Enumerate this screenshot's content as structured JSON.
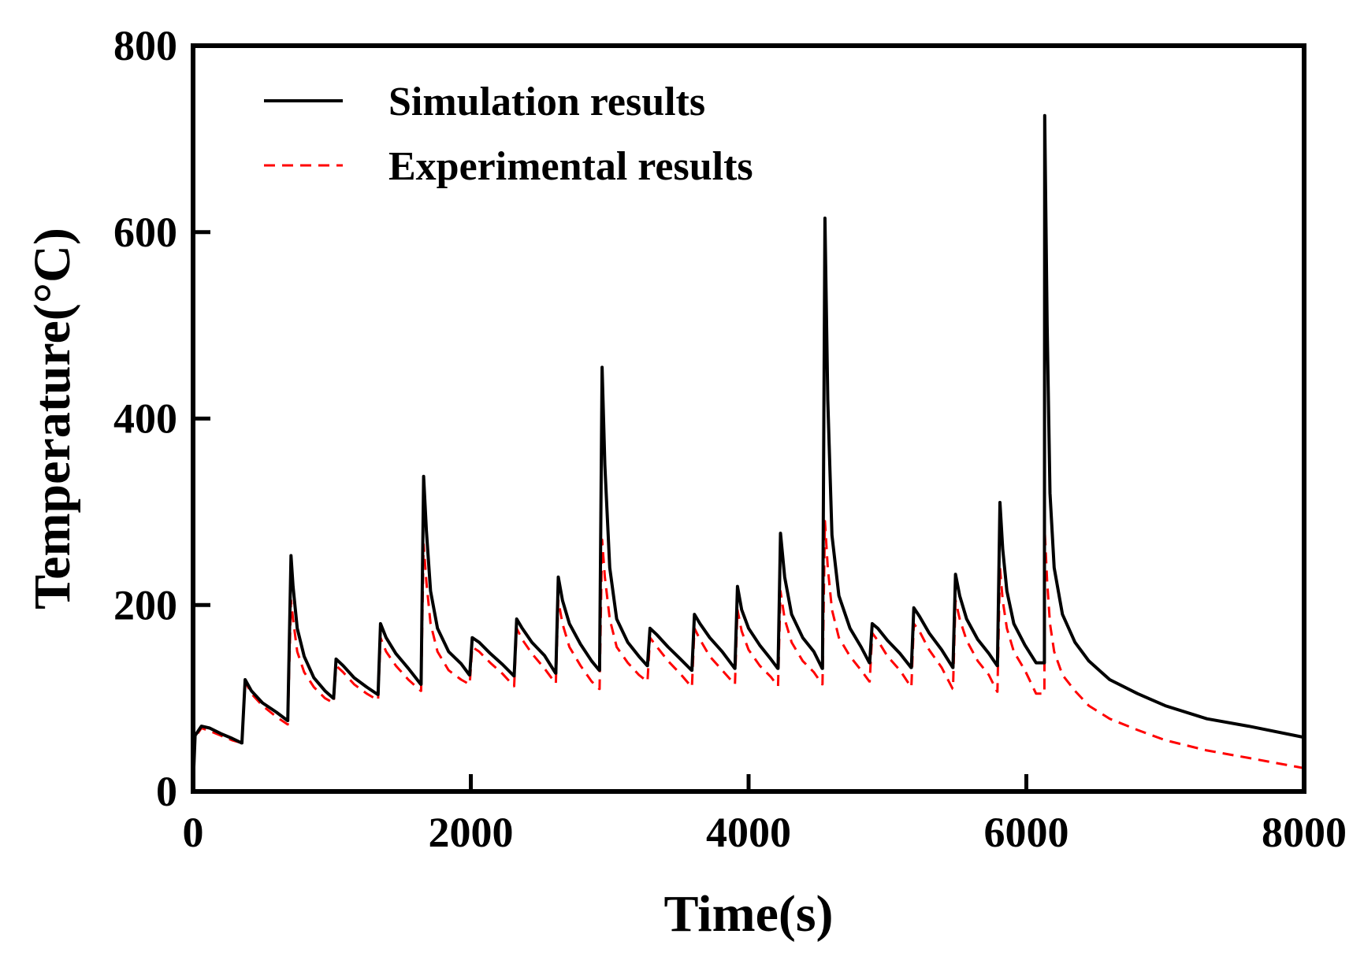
{
  "chart_data": {
    "type": "line",
    "title": "",
    "xlabel": "Time(s)",
    "ylabel": "Temperature(°C)",
    "xlim": [
      0,
      8000
    ],
    "ylim": [
      0,
      800
    ],
    "xticks": [
      0,
      2000,
      4000,
      6000,
      8000
    ],
    "yticks": [
      0,
      200,
      400,
      600,
      800
    ],
    "grid": false,
    "legend_position": "top-left",
    "series": [
      {
        "name": "Simulation results",
        "color": "#000000",
        "style": "solid",
        "x": [
          0,
          15,
          60,
          120,
          200,
          280,
          350,
          352,
          375,
          420,
          500,
          600,
          680,
          682,
          705,
          720,
          750,
          800,
          870,
          950,
          1010,
          1012,
          1030,
          1080,
          1160,
          1250,
          1330,
          1332,
          1350,
          1390,
          1460,
          1550,
          1640,
          1642,
          1660,
          1680,
          1710,
          1760,
          1840,
          1930,
          1990,
          1992,
          2010,
          2060,
          2140,
          2230,
          2310,
          2312,
          2330,
          2370,
          2440,
          2530,
          2610,
          2612,
          2630,
          2660,
          2710,
          2790,
          2870,
          2925,
          2927,
          2945,
          2965,
          3000,
          3050,
          3130,
          3210,
          3270,
          3272,
          3290,
          3340,
          3420,
          3510,
          3590,
          3592,
          3610,
          3650,
          3720,
          3810,
          3900,
          3902,
          3920,
          3950,
          4000,
          4080,
          4160,
          4210,
          4212,
          4230,
          4260,
          4310,
          4390,
          4470,
          4530,
          4532,
          4550,
          4570,
          4600,
          4650,
          4730,
          4810,
          4870,
          4872,
          4890,
          4930,
          5000,
          5090,
          5170,
          5172,
          5190,
          5230,
          5300,
          5390,
          5470,
          5472,
          5490,
          5520,
          5570,
          5650,
          5730,
          5790,
          5792,
          5810,
          5830,
          5860,
          5910,
          5990,
          6070,
          6130,
          6132,
          6150,
          6170,
          6200,
          6260,
          6350,
          6450,
          6600,
          6800,
          7000,
          7300,
          7600,
          8000
        ],
        "y": [
          5,
          60,
          70,
          68,
          62,
          57,
          52,
          52,
          120,
          108,
          95,
          85,
          76,
          76,
          253,
          220,
          175,
          145,
          122,
          108,
          100,
          100,
          142,
          135,
          122,
          112,
          104,
          104,
          180,
          165,
          148,
          132,
          115,
          115,
          338,
          280,
          215,
          175,
          150,
          137,
          125,
          125,
          165,
          160,
          148,
          136,
          124,
          124,
          185,
          175,
          160,
          146,
          127,
          127,
          230,
          205,
          180,
          158,
          140,
          130,
          130,
          455,
          350,
          240,
          185,
          160,
          145,
          135,
          135,
          175,
          168,
          155,
          142,
          130,
          130,
          190,
          180,
          165,
          150,
          132,
          132,
          220,
          195,
          175,
          157,
          142,
          132,
          132,
          277,
          230,
          190,
          165,
          150,
          132,
          132,
          615,
          420,
          275,
          210,
          175,
          155,
          138,
          138,
          180,
          175,
          162,
          148,
          133,
          133,
          197,
          188,
          170,
          152,
          133,
          133,
          233,
          210,
          185,
          163,
          148,
          135,
          135,
          310,
          260,
          215,
          180,
          157,
          138,
          138,
          725,
          500,
          320,
          240,
          190,
          160,
          140,
          120,
          105,
          92,
          78,
          70,
          58
        ]
      },
      {
        "name": "Experimental results",
        "color": "#ff0000",
        "style": "dashed",
        "x": [
          0,
          15,
          60,
          120,
          200,
          280,
          350,
          352,
          375,
          420,
          500,
          600,
          680,
          682,
          705,
          720,
          750,
          800,
          870,
          950,
          1010,
          1012,
          1030,
          1080,
          1160,
          1250,
          1330,
          1332,
          1350,
          1390,
          1460,
          1550,
          1640,
          1642,
          1660,
          1680,
          1710,
          1760,
          1840,
          1930,
          1990,
          1992,
          2010,
          2060,
          2140,
          2230,
          2310,
          2312,
          2330,
          2370,
          2440,
          2530,
          2610,
          2612,
          2630,
          2660,
          2710,
          2790,
          2870,
          2925,
          2927,
          2945,
          2965,
          3000,
          3050,
          3130,
          3210,
          3270,
          3272,
          3290,
          3340,
          3420,
          3510,
          3590,
          3592,
          3610,
          3650,
          3720,
          3810,
          3900,
          3902,
          3920,
          3950,
          4000,
          4080,
          4160,
          4210,
          4212,
          4230,
          4260,
          4310,
          4390,
          4470,
          4530,
          4532,
          4550,
          4570,
          4600,
          4650,
          4730,
          4810,
          4870,
          4872,
          4890,
          4930,
          5000,
          5090,
          5170,
          5172,
          5190,
          5230,
          5300,
          5390,
          5470,
          5472,
          5490,
          5520,
          5570,
          5650,
          5730,
          5790,
          5792,
          5810,
          5830,
          5860,
          5910,
          5990,
          6070,
          6130,
          6132,
          6150,
          6170,
          6200,
          6260,
          6350,
          6450,
          6600,
          6800,
          7000,
          7300,
          7600,
          8000
        ],
        "y": [
          5,
          58,
          68,
          65,
          60,
          55,
          52,
          52,
          118,
          105,
          92,
          80,
          72,
          72,
          205,
          185,
          150,
          128,
          112,
          100,
          95,
          95,
          135,
          128,
          115,
          105,
          98,
          98,
          165,
          150,
          135,
          120,
          108,
          108,
          265,
          225,
          180,
          150,
          130,
          120,
          115,
          115,
          155,
          150,
          138,
          126,
          113,
          113,
          175,
          163,
          148,
          132,
          116,
          116,
          205,
          180,
          155,
          135,
          118,
          110,
          110,
          270,
          230,
          185,
          155,
          138,
          125,
          118,
          118,
          165,
          155,
          140,
          126,
          112,
          112,
          175,
          163,
          145,
          130,
          115,
          115,
          195,
          172,
          152,
          135,
          123,
          113,
          113,
          215,
          185,
          160,
          140,
          128,
          115,
          115,
          290,
          240,
          195,
          165,
          145,
          130,
          118,
          118,
          170,
          162,
          145,
          130,
          112,
          112,
          180,
          172,
          152,
          133,
          110,
          110,
          205,
          185,
          162,
          140,
          125,
          107,
          107,
          240,
          205,
          175,
          150,
          130,
          105,
          105,
          280,
          225,
          180,
          150,
          125,
          108,
          92,
          78,
          66,
          55,
          44,
          36,
          25
        ]
      }
    ]
  }
}
